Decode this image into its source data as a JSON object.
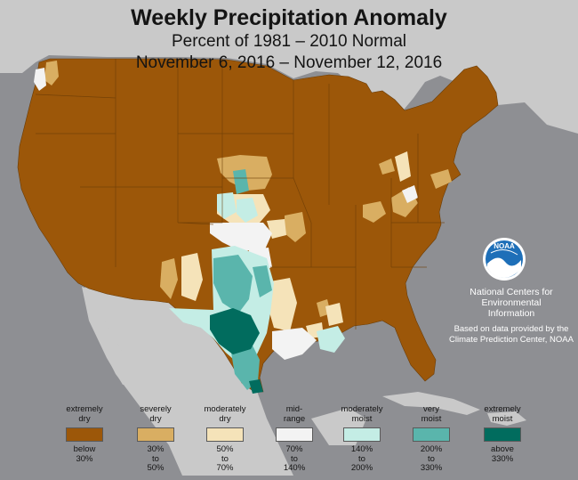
{
  "map": {
    "title": "Weekly Precipitation Anomaly",
    "subtitle": "Percent of 1981 – 2010 Normal",
    "date_range": "November 6, 2016 – November 12, 2016",
    "region": "Contiguous United States",
    "colors": {
      "ocean": "#8e8f93",
      "land_outside": "#c8c8c8",
      "extremely_dry": "#9c5709",
      "severely_dry": "#d9ae62",
      "moderately_dry": "#f5e3b9",
      "mid_range": "#f3f3f3",
      "moderately_moist": "#c4ede5",
      "very_moist": "#5ab5ac",
      "extremely_moist": "#016c5e"
    }
  },
  "logo": {
    "text": "NOAA",
    "colors": [
      "#1e6fb8",
      "#ffffff"
    ]
  },
  "attribution": {
    "org_lines": [
      "National Centers for",
      "Environmental",
      "Information"
    ],
    "source_lines": [
      "Based on data provided by the",
      "Climate Prediction Center, NOAA"
    ]
  },
  "legend": [
    {
      "top": [
        "extremely",
        "dry"
      ],
      "bottom": [
        "below",
        "30%"
      ],
      "color": "#9c5709"
    },
    {
      "top": [
        "severely",
        "dry"
      ],
      "bottom": [
        "30%",
        "to",
        "50%"
      ],
      "color": "#d9ae62"
    },
    {
      "top": [
        "moderately",
        "dry"
      ],
      "bottom": [
        "50%",
        "to",
        "70%"
      ],
      "color": "#f5e3b9"
    },
    {
      "top": [
        "mid-",
        "range"
      ],
      "bottom": [
        "70%",
        "to",
        "140%"
      ],
      "color": "#f3f3f3"
    },
    {
      "top": [
        "moderately",
        "moist"
      ],
      "bottom": [
        "140%",
        "to",
        "200%"
      ],
      "color": "#c4ede5"
    },
    {
      "top": [
        "very",
        "moist"
      ],
      "bottom": [
        "200%",
        "to",
        "330%"
      ],
      "color": "#5ab5ac"
    },
    {
      "top": [
        "extremely",
        "moist"
      ],
      "bottom": [
        "above",
        "330%"
      ],
      "color": "#016c5e"
    }
  ]
}
